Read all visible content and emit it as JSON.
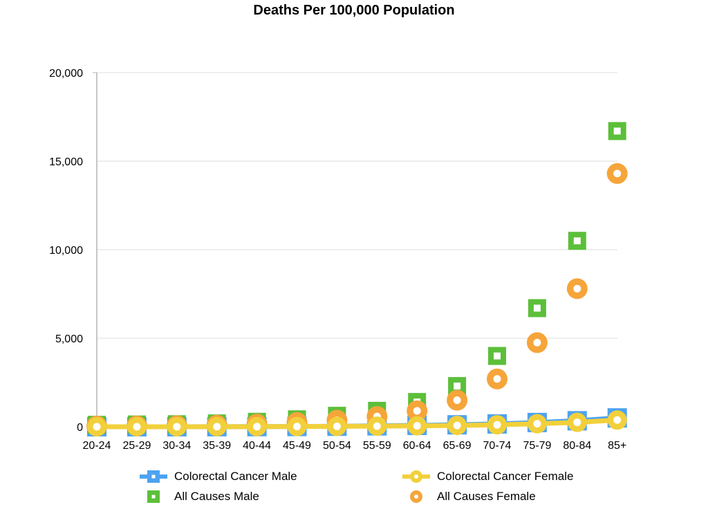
{
  "chart_data": {
    "type": "line",
    "title": "Deaths Per 100,000 Population",
    "xlabel": "",
    "ylabel": "",
    "categories": [
      "20-24",
      "25-29",
      "30-34",
      "35-39",
      "40-44",
      "45-49",
      "50-54",
      "55-59",
      "60-64",
      "65-69",
      "70-74",
      "75-79",
      "80-84",
      "85+"
    ],
    "ylim": [
      0,
      20000
    ],
    "yticks": [
      "0",
      "5,000",
      "10,000",
      "15,000",
      "20,000"
    ],
    "grid": true,
    "legend_position": "bottom",
    "series": [
      {
        "name": "Colorectal Cancer Male",
        "color": "#4da3f0",
        "marker": "square",
        "line": true,
        "values": [
          1,
          1,
          2,
          4,
          8,
          16,
          31,
          52,
          78,
          110,
          160,
          240,
          340,
          500
        ]
      },
      {
        "name": "Colorectal Cancer Female",
        "color": "#f2d03b",
        "marker": "circle",
        "line": true,
        "values": [
          1,
          1,
          2,
          4,
          7,
          13,
          22,
          36,
          52,
          75,
          110,
          170,
          250,
          380
        ]
      },
      {
        "name": "All Causes Male",
        "color": "#5cbf3a",
        "marker": "square",
        "line": false,
        "values": [
          110,
          130,
          145,
          190,
          280,
          420,
          620,
          900,
          1400,
          2300,
          4000,
          6700,
          10500,
          16700
        ]
      },
      {
        "name": "All Causes Female",
        "color": "#f5a53a",
        "marker": "circle",
        "line": false,
        "values": [
          40,
          50,
          65,
          95,
          150,
          240,
          370,
          580,
          900,
          1500,
          2700,
          4750,
          7800,
          14300
        ]
      }
    ]
  }
}
